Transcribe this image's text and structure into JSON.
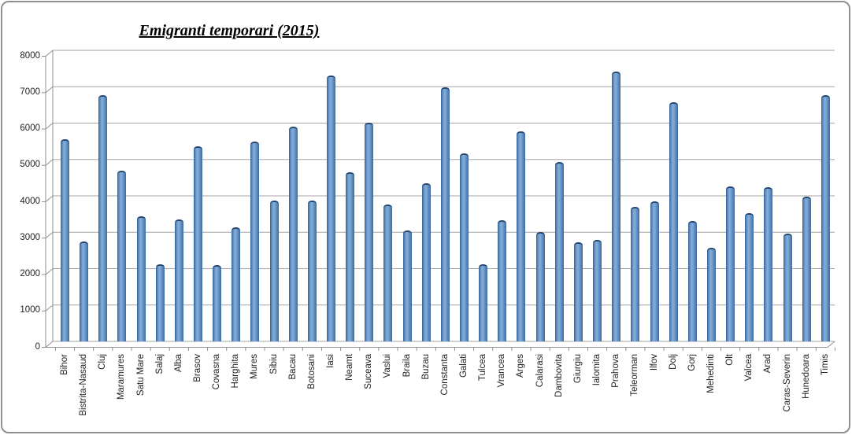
{
  "chart_data": {
    "type": "bar",
    "style": "3d-column",
    "title": "Emigranti temporari (2015)",
    "xlabel": "",
    "ylabel": "",
    "legend": "none",
    "grid": true,
    "ylim": [
      0,
      8000
    ],
    "ytick_step": 1000,
    "ytick_labels": [
      "0",
      "1000",
      "2000",
      "3000",
      "4000",
      "5000",
      "6000",
      "7000",
      "8000"
    ],
    "categories": [
      "Bihor",
      "Bistrita-Nasaud",
      "Cluj",
      "Maramures",
      "Satu Mare",
      "Salaj",
      "Alba",
      "Brasov",
      "Covasna",
      "Harghita",
      "Mures",
      "Sibiu",
      "Bacau",
      "Botosani",
      "Iasi",
      "Neamt",
      "Suceava",
      "Vaslui",
      "Braila",
      "Buzau",
      "Constanta",
      "Galati",
      "Tulcea",
      "Vrancea",
      "Arges",
      "Calarasi",
      "Dambovita",
      "Giurgiu",
      "Ialomita",
      "Prahova",
      "Teleorman",
      "Ilfov",
      "Dolj",
      "Gorj",
      "Mehedinti",
      "Olt",
      "Valcea",
      "Arad",
      "Caras-Severin",
      "Hunedoara",
      "Timis"
    ],
    "values": [
      5560,
      2740,
      6770,
      4700,
      3430,
      2110,
      3360,
      5370,
      2090,
      3130,
      5490,
      3860,
      5900,
      3870,
      7310,
      4640,
      6010,
      3760,
      3040,
      4340,
      6980,
      5160,
      2110,
      3330,
      5770,
      3000,
      4920,
      2730,
      2780,
      7410,
      3700,
      3840,
      6570,
      3300,
      2580,
      4260,
      3520,
      4230,
      2970,
      3980,
      6760
    ],
    "colors": {
      "bar_edge_dark": "#305c94",
      "bar_mid_light": "#86add8",
      "bar_cap_dark": "#24466e",
      "gridline": "#a6a6a6",
      "axis_line": "#8f8f8f",
      "frame_border": "#8f8f8f",
      "background": "#ffffff",
      "label_text": "#1f1f1f"
    }
  }
}
